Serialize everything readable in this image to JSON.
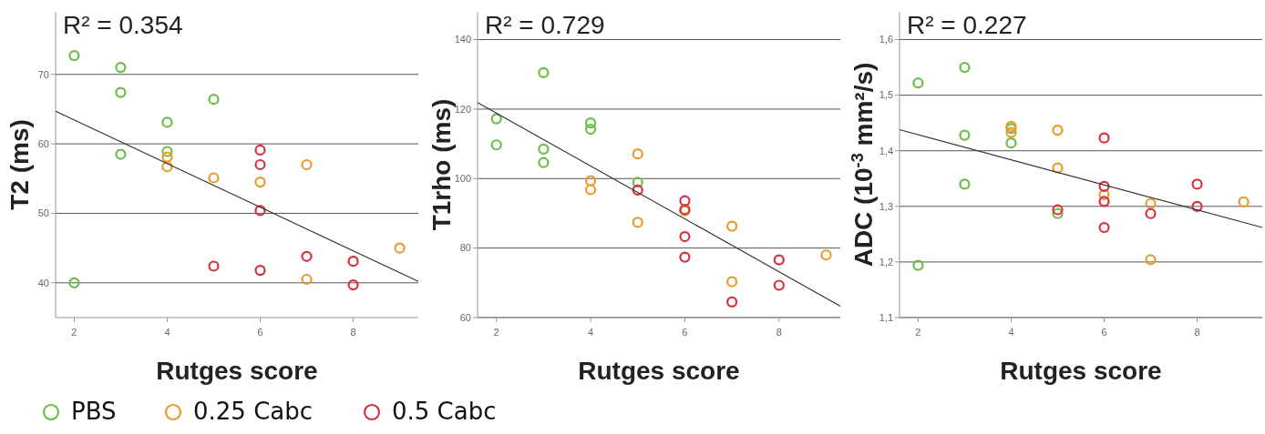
{
  "chart_data": [
    {
      "type": "scatter",
      "title": "R² = 0.354",
      "xlabel": "Rutges score",
      "ylabel": "T2 (ms)",
      "xlim": [
        1.6,
        9.4
      ],
      "ylim": [
        35,
        79
      ],
      "xticks": [
        2,
        4,
        6,
        8
      ],
      "yticks": [
        40,
        50,
        60,
        70
      ],
      "grid": "y",
      "marker": "circle",
      "legend": "bottom",
      "series": [
        {
          "name": "PBS",
          "color": "#6cbd45",
          "x": [
            2,
            3,
            3,
            3,
            4,
            4,
            5,
            2
          ],
          "values": [
            72.7,
            71.0,
            67.4,
            58.5,
            63.1,
            58.9,
            66.4,
            40.0
          ]
        },
        {
          "name": "0.25 Cabc",
          "color": "#e89a2c",
          "x": [
            4,
            4,
            5,
            6,
            7,
            9,
            7
          ],
          "values": [
            58.1,
            56.7,
            55.1,
            54.5,
            57.0,
            45.0,
            40.5
          ]
        },
        {
          "name": "0.5 Cabc",
          "color": "#d8303c",
          "x": [
            6,
            6,
            6,
            5,
            6,
            7,
            8,
            8
          ],
          "values": [
            59.1,
            57.0,
            50.4,
            42.4,
            41.8,
            43.8,
            43.1,
            39.7
          ]
        },
        {
          "type": "line",
          "color": "#333333",
          "marker": "none",
          "line_style": "solid",
          "x": [
            1.6,
            9.4
          ],
          "values": [
            64.7,
            40.2
          ]
        }
      ]
    },
    {
      "type": "scatter",
      "title": "R² = 0.729",
      "xlabel": "Rutges score",
      "ylabel": "T1rho (ms)",
      "xlim": [
        1.6,
        9.3
      ],
      "ylim": [
        60,
        148
      ],
      "xticks": [
        2,
        4,
        6,
        8
      ],
      "yticks": [
        60,
        80,
        100,
        120,
        140
      ],
      "grid": "y",
      "marker": "circle",
      "series": [
        {
          "color": "#6cbd45",
          "x": [
            2,
            2,
            3,
            3,
            3,
            4,
            4,
            5
          ],
          "values": [
            117.2,
            109.7,
            130.5,
            108.5,
            104.6,
            116.0,
            114.2,
            98.9
          ]
        },
        {
          "color": "#e89a2c",
          "x": [
            4,
            4,
            5,
            5,
            6,
            7,
            7,
            9
          ],
          "values": [
            99.4,
            96.8,
            107.1,
            87.4,
            90.7,
            86.3,
            70.3,
            78.0
          ]
        },
        {
          "color": "#d8303c",
          "x": [
            5,
            6,
            6,
            6,
            6,
            7,
            8,
            8
          ],
          "values": [
            96.7,
            93.6,
            91.1,
            83.3,
            77.4,
            64.5,
            76.6,
            69.3
          ]
        },
        {
          "type": "line",
          "color": "#333333",
          "marker": "none",
          "line_style": "solid",
          "x": [
            1.6,
            9.3
          ],
          "values": [
            121.9,
            63.3
          ]
        }
      ]
    },
    {
      "type": "scatter",
      "title": "R² = 0.227",
      "xlabel": "Rutges score",
      "ylabel": "ADC (10$^{-3}$ mm²/s)",
      "xlim": [
        1.6,
        9.4
      ],
      "ylim": [
        1.1,
        1.65
      ],
      "xticks": [
        2,
        4,
        6,
        8
      ],
      "yticks": [
        {
          "value": 1.1,
          "label": "1,1"
        },
        {
          "value": 1.2,
          "label": "1,2"
        },
        {
          "value": 1.3,
          "label": "1,3"
        },
        {
          "value": 1.4,
          "label": "1,4"
        },
        {
          "value": 1.5,
          "label": "1,5"
        },
        {
          "value": 1.6,
          "label": "1,6"
        }
      ],
      "grid": "y",
      "marker": "circle",
      "series": [
        {
          "color": "#6cbd45",
          "x": [
            2,
            2,
            3,
            3,
            3,
            4,
            4,
            5
          ],
          "values": [
            1.522,
            1.194,
            1.55,
            1.428,
            1.34,
            1.44,
            1.414,
            1.287
          ]
        },
        {
          "color": "#e89a2c",
          "x": [
            4,
            4,
            5,
            5,
            6,
            7,
            7,
            9
          ],
          "values": [
            1.444,
            1.433,
            1.437,
            1.369,
            1.321,
            1.305,
            1.204,
            1.308
          ]
        },
        {
          "color": "#d8303c",
          "x": [
            5,
            6,
            6,
            6,
            6,
            7,
            8,
            8
          ],
          "values": [
            1.294,
            1.423,
            1.336,
            1.309,
            1.262,
            1.287,
            1.34,
            1.3
          ]
        },
        {
          "type": "line",
          "color": "#333333",
          "marker": "none",
          "line_style": "solid",
          "x": [
            1.6,
            9.4
          ],
          "values": [
            1.438,
            1.262
          ]
        }
      ]
    }
  ]
}
